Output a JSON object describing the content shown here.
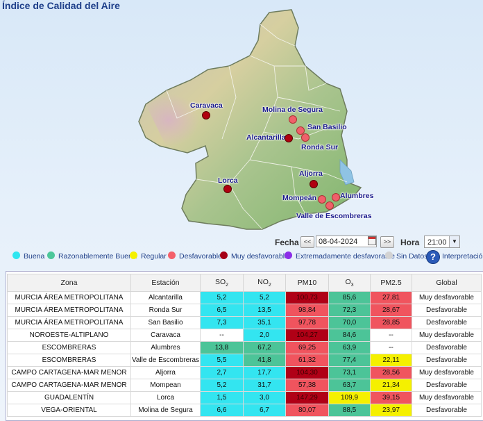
{
  "page": {
    "title": "Índice de Calidad del Aire"
  },
  "map": {
    "cities": [
      {
        "name": "Caravaca",
        "marker": "red"
      },
      {
        "name": "Molina de Segura",
        "marker": "pink"
      },
      {
        "name": "San Basilio",
        "marker": "pink"
      },
      {
        "name": "Alcantarilla",
        "marker": "red"
      },
      {
        "name": "Ronda Sur",
        "marker": "pink"
      },
      {
        "name": "Aljorra",
        "marker": "red"
      },
      {
        "name": "Lorca",
        "marker": "red"
      },
      {
        "name": "Alumbres",
        "marker": "pink"
      },
      {
        "name": "Mompeán",
        "marker": "pink"
      },
      {
        "name": "Valle de Escombreras",
        "marker": "pink"
      }
    ]
  },
  "controls": {
    "fecha_label": "Fecha",
    "prev_label": "<<",
    "date_value": "08-04-2024",
    "next_label": ">>",
    "hora_label": "Hora",
    "hour_value": "21:00"
  },
  "legend": {
    "items": [
      {
        "label": "Buena",
        "color": "#2fe6f0"
      },
      {
        "label": "Razonablemente Buena",
        "color": "#4dc79a"
      },
      {
        "label": "Regular",
        "color": "#f4f000"
      },
      {
        "label": "Desfavorable",
        "color": "#f4606a"
      },
      {
        "label": "Muy desfavorable",
        "color": "#a50016"
      },
      {
        "label": "Extremadamente desfavorable",
        "color": "#8c2ee8"
      },
      {
        "label": "Sin Datos",
        "color": "#d3d3d3"
      }
    ],
    "interpretacion": "Interpretación"
  },
  "colors": {
    "buena": "#33e5f0",
    "razonable": "#4cc498",
    "regular": "#f5f000",
    "desfavorable": "#f0545e",
    "muy": "#b00016",
    "none": "#ffffff"
  },
  "table": {
    "headers": {
      "zona": "Zona",
      "estacion": "Estación",
      "so2": "SO",
      "so2_sub": "2",
      "no2": "NO",
      "no2_sub": "2",
      "pm10": "PM10",
      "o3": "O",
      "o3_sub": "3",
      "pm25": "PM2.5",
      "global": "Global"
    },
    "rows": [
      {
        "zona": "MURCIA ÁREA METROPOLITANA",
        "estacion": "Alcantarilla",
        "so2": "5,2",
        "so2_c": "buena",
        "no2": "5,2",
        "no2_c": "buena",
        "pm10": "100,73",
        "pm10_c": "muy",
        "o3": "85,6",
        "o3_c": "razonable",
        "pm25": "27,81",
        "pm25_c": "desfavorable",
        "global": "Muy desfavorable"
      },
      {
        "zona": "MURCIA ÁREA METROPOLITANA",
        "estacion": "Ronda Sur",
        "so2": "6,5",
        "so2_c": "buena",
        "no2": "13,5",
        "no2_c": "buena",
        "pm10": "98,84",
        "pm10_c": "desfavorable",
        "o3": "72,3",
        "o3_c": "razonable",
        "pm25": "28,67",
        "pm25_c": "desfavorable",
        "global": "Desfavorable"
      },
      {
        "zona": "MURCIA ÁREA METROPOLITANA",
        "estacion": "San Basilio",
        "so2": "7,3",
        "so2_c": "buena",
        "no2": "35,1",
        "no2_c": "buena",
        "pm10": "97,78",
        "pm10_c": "desfavorable",
        "o3": "70,0",
        "o3_c": "razonable",
        "pm25": "28,85",
        "pm25_c": "desfavorable",
        "global": "Desfavorable"
      },
      {
        "zona": "NOROESTE-ALTIPLANO",
        "estacion": "Caravaca",
        "so2": "--",
        "so2_c": "none",
        "no2": "2,0",
        "no2_c": "buena",
        "pm10": "104,27",
        "pm10_c": "muy",
        "o3": "84,6",
        "o3_c": "razonable",
        "pm25": "--",
        "pm25_c": "none",
        "global": "Muy desfavorable"
      },
      {
        "zona": "ESCOMBRERAS",
        "estacion": "Alumbres",
        "so2": "13,8",
        "so2_c": "razonable",
        "no2": "67,2",
        "no2_c": "razonable",
        "pm10": "69,25",
        "pm10_c": "desfavorable",
        "o3": "63,9",
        "o3_c": "razonable",
        "pm25": "--",
        "pm25_c": "none",
        "global": "Desfavorable"
      },
      {
        "zona": "ESCOMBRERAS",
        "estacion": "Valle de Escombreras",
        "so2": "5,5",
        "so2_c": "buena",
        "no2": "41,8",
        "no2_c": "razonable",
        "pm10": "61,32",
        "pm10_c": "desfavorable",
        "o3": "77,4",
        "o3_c": "razonable",
        "pm25": "22,11",
        "pm25_c": "regular",
        "global": "Desfavorable"
      },
      {
        "zona": "CAMPO CARTAGENA-MAR MENOR",
        "estacion": "Aljorra",
        "so2": "2,7",
        "so2_c": "buena",
        "no2": "17,7",
        "no2_c": "buena",
        "pm10": "104,30",
        "pm10_c": "muy",
        "o3": "73,1",
        "o3_c": "razonable",
        "pm25": "28,56",
        "pm25_c": "desfavorable",
        "global": "Muy desfavorable"
      },
      {
        "zona": "CAMPO CARTAGENA-MAR MENOR",
        "estacion": "Mompean",
        "so2": "5,2",
        "so2_c": "buena",
        "no2": "31,7",
        "no2_c": "buena",
        "pm10": "57,38",
        "pm10_c": "desfavorable",
        "o3": "63,7",
        "o3_c": "razonable",
        "pm25": "21,34",
        "pm25_c": "regular",
        "global": "Desfavorable"
      },
      {
        "zona": "GUADALENTÍN",
        "estacion": "Lorca",
        "so2": "1,5",
        "so2_c": "buena",
        "no2": "3,0",
        "no2_c": "buena",
        "pm10": "147,29",
        "pm10_c": "muy",
        "o3": "109,9",
        "o3_c": "regular",
        "pm25": "39,15",
        "pm25_c": "desfavorable",
        "global": "Muy desfavorable"
      },
      {
        "zona": "VEGA-ORIENTAL",
        "estacion": "Molina de Segura",
        "so2": "6,6",
        "so2_c": "buena",
        "no2": "6,7",
        "no2_c": "buena",
        "pm10": "80,07",
        "pm10_c": "desfavorable",
        "o3": "88,5",
        "o3_c": "razonable",
        "pm25": "23,97",
        "pm25_c": "regular",
        "global": "Desfavorable"
      }
    ]
  }
}
